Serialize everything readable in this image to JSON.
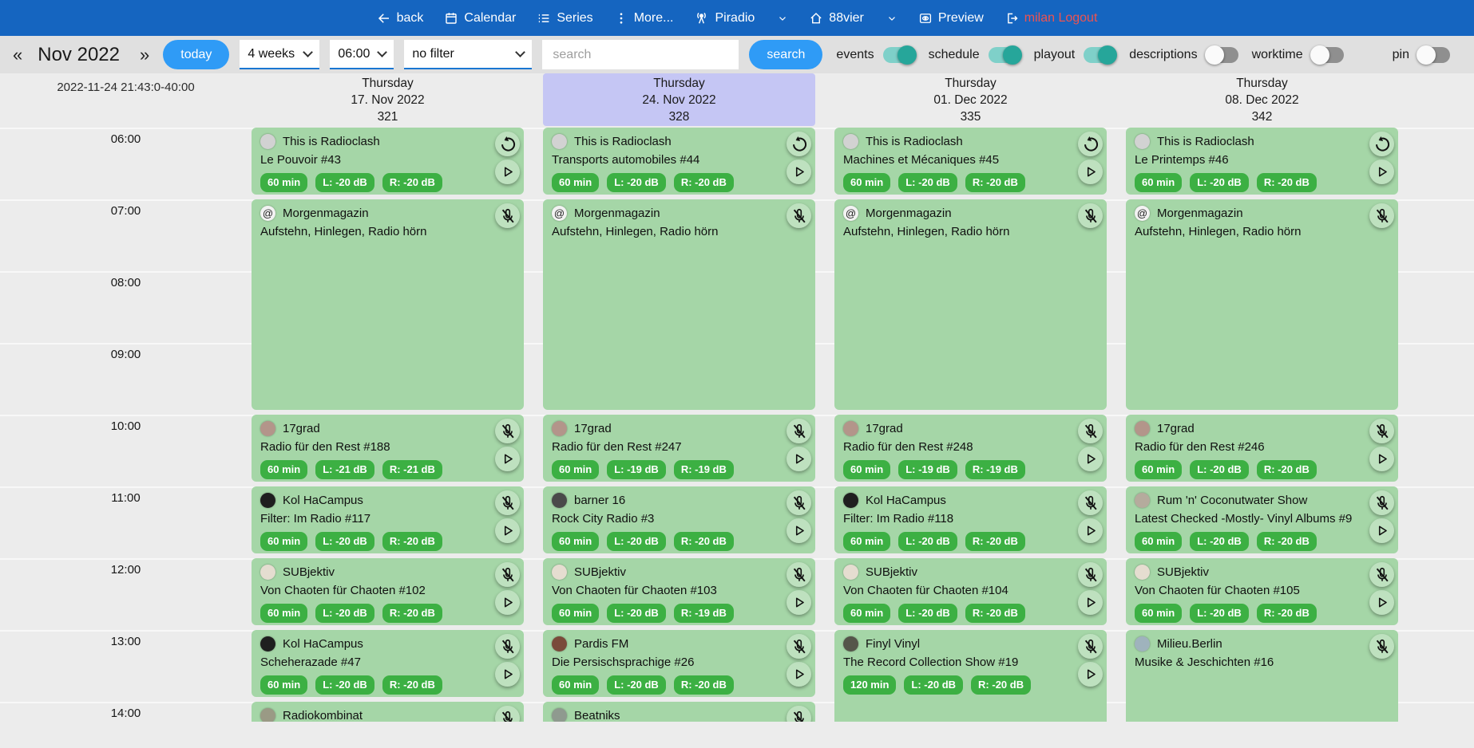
{
  "colors": {
    "navbar_blue": "#1565c0",
    "accent_blue": "#2f9bf6",
    "card_green": "#a5d6a7",
    "badge_green": "#3cb043",
    "today_highlight": "#c5c6f4",
    "logout_red": "#ef5350",
    "toggle_on_teal": "#26a69a"
  },
  "navbar": {
    "items": [
      {
        "label": "back",
        "icon": "back-icon"
      },
      {
        "label": "Calendar",
        "icon": "calendar-icon"
      },
      {
        "label": "Series",
        "icon": "series-icon"
      },
      {
        "label": "More...",
        "icon": "more-icon"
      },
      {
        "label": "Piradio",
        "icon": "antenna-icon",
        "dropdown": true
      },
      {
        "label": "88vier",
        "icon": "home-icon",
        "dropdown": true
      },
      {
        "label": "Preview",
        "icon": "preview-icon"
      }
    ],
    "logout": {
      "label": "milan Logout",
      "icon": "logout-icon"
    }
  },
  "toolbar": {
    "prev_label": "«",
    "next_label": "»",
    "month_label": "Nov 2022",
    "today_label": "today",
    "range_select_value": "4 weeks",
    "time_select_value": "06:00",
    "filter_select_value": "no filter",
    "search_placeholder": "search",
    "search_button_label": "search",
    "toggles": [
      {
        "label": "events",
        "on": true
      },
      {
        "label": "schedule",
        "on": true
      },
      {
        "label": "playout",
        "on": true
      },
      {
        "label": "descriptions",
        "on": false
      },
      {
        "label": "worktime",
        "on": false
      },
      {
        "label": "pin",
        "on": false
      }
    ]
  },
  "timebar": {
    "now_label": "2022-11-24 21:43:0-40:00",
    "hours": [
      "06:00",
      "07:00",
      "08:00",
      "09:00",
      "10:00",
      "11:00",
      "12:00",
      "13:00",
      "14:00"
    ]
  },
  "columns": [
    {
      "weekday": "Thursday",
      "date": "17. Nov 2022",
      "day_number": "321",
      "highlight": false,
      "events": [
        {
          "title": "This is Radioclash",
          "subtitle": "Le Pouvoir #43",
          "start": "06:00",
          "hours": 1,
          "badges": [
            "60 min",
            "L: -20 dB",
            "R: -20 dB"
          ],
          "icons": [
            "replay",
            "play"
          ],
          "logo_color": "#d2d2d2"
        },
        {
          "title": "Morgenmagazin",
          "subtitle": "Aufstehn, Hinlegen, Radio hörn",
          "start": "07:00",
          "hours": 3,
          "badges": [],
          "icons": [
            "mic-off"
          ],
          "logo_color": "#f2f2f2",
          "logo_glyph": "@"
        },
        {
          "title": "17grad",
          "subtitle": "Radio für den Rest #188",
          "start": "10:00",
          "hours": 1,
          "badges": [
            "60 min",
            "L: -21 dB",
            "R: -21 dB"
          ],
          "icons": [
            "mic-off",
            "play"
          ],
          "logo_color": "#b3958a"
        },
        {
          "title": "Kol HaCampus",
          "subtitle": "Filter: Im Radio #117",
          "start": "11:00",
          "hours": 1,
          "badges": [
            "60 min",
            "L: -20 dB",
            "R: -20 dB"
          ],
          "icons": [
            "mic-off",
            "play"
          ],
          "logo_color": "#1f1f1f"
        },
        {
          "title": "SUBjektiv",
          "subtitle": "Von Chaoten für Chaoten #102",
          "start": "12:00",
          "hours": 1,
          "badges": [
            "60 min",
            "L: -20 dB",
            "R: -20 dB"
          ],
          "icons": [
            "mic-off",
            "play"
          ],
          "logo_color": "#e5ddd0"
        },
        {
          "title": "Kol HaCampus",
          "subtitle": "Scheherazade #47",
          "start": "13:00",
          "hours": 1,
          "badges": [
            "60 min",
            "L: -20 dB",
            "R: -20 dB"
          ],
          "icons": [
            "mic-off",
            "play"
          ],
          "logo_color": "#1f1f1f"
        },
        {
          "title": "Radiokombinat",
          "subtitle": "",
          "start": "14:00",
          "hours": 1,
          "badges": [],
          "icons": [
            "mic-off"
          ],
          "logo_color": "#9a9a85"
        }
      ]
    },
    {
      "weekday": "Thursday",
      "date": "24. Nov 2022",
      "day_number": "328",
      "highlight": true,
      "events": [
        {
          "title": "This is Radioclash",
          "subtitle": "Transports automobiles #44",
          "start": "06:00",
          "hours": 1,
          "badges": [
            "60 min",
            "L: -20 dB",
            "R: -20 dB"
          ],
          "icons": [
            "replay",
            "play"
          ],
          "logo_color": "#d2d2d2"
        },
        {
          "title": "Morgenmagazin",
          "subtitle": "Aufstehn, Hinlegen, Radio hörn",
          "start": "07:00",
          "hours": 3,
          "badges": [],
          "icons": [
            "mic-off"
          ],
          "logo_color": "#f2f2f2",
          "logo_glyph": "@"
        },
        {
          "title": "17grad",
          "subtitle": "Radio für den Rest #247",
          "start": "10:00",
          "hours": 1,
          "badges": [
            "60 min",
            "L: -19 dB",
            "R: -19 dB"
          ],
          "icons": [
            "mic-off",
            "play"
          ],
          "logo_color": "#b3958a"
        },
        {
          "title": "barner 16",
          "subtitle": "Rock City Radio #3",
          "start": "11:00",
          "hours": 1,
          "badges": [
            "60 min",
            "L: -20 dB",
            "R: -20 dB"
          ],
          "icons": [
            "mic-off",
            "play"
          ],
          "logo_color": "#4a4a4a"
        },
        {
          "title": "SUBjektiv",
          "subtitle": "Von Chaoten für Chaoten #103",
          "start": "12:00",
          "hours": 1,
          "badges": [
            "60 min",
            "L: -20 dB",
            "R: -19 dB"
          ],
          "icons": [
            "mic-off",
            "play"
          ],
          "logo_color": "#e5ddd0"
        },
        {
          "title": "Pardis FM",
          "subtitle": "Die Persischsprachige #26",
          "start": "13:00",
          "hours": 1,
          "badges": [
            "60 min",
            "L: -20 dB",
            "R: -20 dB"
          ],
          "icons": [
            "mic-off",
            "play"
          ],
          "logo_color": "#7a4a3a"
        },
        {
          "title": "Beatniks",
          "subtitle": "",
          "start": "14:00",
          "hours": 1,
          "badges": [],
          "icons": [
            "mic-off"
          ],
          "logo_color": "#8f9a8f"
        }
      ]
    },
    {
      "weekday": "Thursday",
      "date": "01. Dec 2022",
      "day_number": "335",
      "highlight": false,
      "events": [
        {
          "title": "This is Radioclash",
          "subtitle": "Machines et Mécaniques #45",
          "start": "06:00",
          "hours": 1,
          "badges": [
            "60 min",
            "L: -20 dB",
            "R: -20 dB"
          ],
          "icons": [
            "replay",
            "play"
          ],
          "logo_color": "#d2d2d2"
        },
        {
          "title": "Morgenmagazin",
          "subtitle": "Aufstehn, Hinlegen, Radio hörn",
          "start": "07:00",
          "hours": 3,
          "badges": [],
          "icons": [
            "mic-off"
          ],
          "logo_color": "#f2f2f2",
          "logo_glyph": "@"
        },
        {
          "title": "17grad",
          "subtitle": "Radio für den Rest #248",
          "start": "10:00",
          "hours": 1,
          "badges": [
            "60 min",
            "L: -19 dB",
            "R: -19 dB"
          ],
          "icons": [
            "mic-off",
            "play"
          ],
          "logo_color": "#b3958a"
        },
        {
          "title": "Kol HaCampus",
          "subtitle": "Filter: Im Radio #118",
          "start": "11:00",
          "hours": 1,
          "badges": [
            "60 min",
            "L: -20 dB",
            "R: -20 dB"
          ],
          "icons": [
            "mic-off",
            "play"
          ],
          "logo_color": "#1f1f1f"
        },
        {
          "title": "SUBjektiv",
          "subtitle": "Von Chaoten für Chaoten #104",
          "start": "12:00",
          "hours": 1,
          "badges": [
            "60 min",
            "L: -20 dB",
            "R: -20 dB"
          ],
          "icons": [
            "mic-off",
            "play"
          ],
          "logo_color": "#e5ddd0"
        },
        {
          "title": "Finyl Vinyl",
          "subtitle": "The Record Collection Show #19",
          "start": "13:00",
          "hours": 2,
          "badges": [
            "120 min",
            "L: -20 dB",
            "R: -20 dB"
          ],
          "icons": [
            "mic-off",
            "play"
          ],
          "logo_color": "#55554a"
        }
      ]
    },
    {
      "weekday": "Thursday",
      "date": "08. Dec 2022",
      "day_number": "342",
      "highlight": false,
      "events": [
        {
          "title": "This is Radioclash",
          "subtitle": "Le Printemps #46",
          "start": "06:00",
          "hours": 1,
          "badges": [
            "60 min",
            "L: -20 dB",
            "R: -20 dB"
          ],
          "icons": [
            "replay",
            "play"
          ],
          "logo_color": "#d2d2d2"
        },
        {
          "title": "Morgenmagazin",
          "subtitle": "Aufstehn, Hinlegen, Radio hörn",
          "start": "07:00",
          "hours": 3,
          "badges": [],
          "icons": [
            "mic-off"
          ],
          "logo_color": "#f2f2f2",
          "logo_glyph": "@"
        },
        {
          "title": "17grad",
          "subtitle": "Radio für den Rest #246",
          "start": "10:00",
          "hours": 1,
          "badges": [
            "60 min",
            "L: -20 dB",
            "R: -20 dB"
          ],
          "icons": [
            "mic-off",
            "play"
          ],
          "logo_color": "#b3958a"
        },
        {
          "title": "Rum 'n' Coconutwater Show",
          "subtitle": "Latest Checked -Mostly- Vinyl Albums #9",
          "start": "11:00",
          "hours": 1,
          "badges": [
            "60 min",
            "L: -20 dB",
            "R: -20 dB"
          ],
          "icons": [
            "mic-off",
            "play"
          ],
          "logo_color": "#b5ab9d"
        },
        {
          "title": "SUBjektiv",
          "subtitle": "Von Chaoten für Chaoten #105",
          "start": "12:00",
          "hours": 1,
          "badges": [
            "60 min",
            "L: -20 dB",
            "R: -20 dB"
          ],
          "icons": [
            "mic-off",
            "play"
          ],
          "logo_color": "#e5ddd0"
        },
        {
          "title": "Milieu.Berlin",
          "subtitle": "Musike & Jeschichten #16",
          "start": "13:00",
          "hours": 2,
          "badges": [],
          "icons": [
            "mic-off"
          ],
          "logo_color": "#9fb3bd"
        }
      ]
    }
  ]
}
